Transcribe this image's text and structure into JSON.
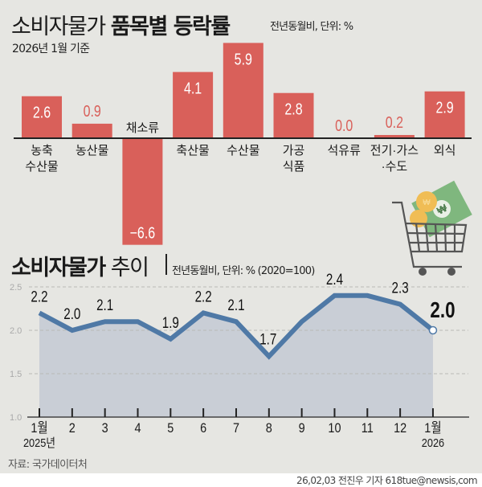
{
  "colors": {
    "background": "#e6e6e2",
    "bar": "#d9605a",
    "line": "#4f79a6",
    "area_fill": "#c9ced6",
    "gridline": "#b9b9b5"
  },
  "header": {
    "title_regular": "소비자물가 ",
    "title_bold": "품목별 등락률",
    "subtitle": "전년동월비, 단위: %",
    "basis": "2026년 1월 기준"
  },
  "section2": {
    "title_bold": "소비자물가",
    "title_regular": "추이",
    "subtitle": "전년동월비, 단위: % (2020=100)"
  },
  "illustration": {
    "icon": "shopping-cart-with-money-icon"
  },
  "footer": {
    "source": "자료: 국가데이터처",
    "credit": "26,02,03 전진우 기자 618tue@newsis,com"
  },
  "chart_data": [
    {
      "type": "bar",
      "title": "소비자물가 품목별 등락률",
      "subtitle": "전년동월비, 단위: %",
      "note": "2026년 1월 기준",
      "categories": [
        "농축수산물",
        "농산물",
        "채소류",
        "축산물",
        "수산물",
        "가공식품",
        "석유류",
        "전기·가스·수도",
        "외식"
      ],
      "category_lines": [
        [
          "농축",
          "수산물"
        ],
        [
          "농산물"
        ],
        [
          "채소류"
        ],
        [
          "축산물"
        ],
        [
          "수산물"
        ],
        [
          "가공",
          "식품"
        ],
        [
          "석유류"
        ],
        [
          "전기·가스",
          "·수도"
        ],
        [
          "외식"
        ]
      ],
      "values": [
        2.6,
        0.9,
        -6.6,
        4.1,
        5.9,
        2.8,
        0.0,
        0.2,
        2.9
      ],
      "value_labels": [
        "2.6",
        "0.9",
        "−6.6",
        "4.1",
        "5.9",
        "2.8",
        "0.0",
        "0.2",
        "2.9"
      ],
      "xlabel": "",
      "ylabel": "%",
      "grid": false
    },
    {
      "type": "area",
      "title": "소비자물가 추이",
      "subtitle": "전년동월비, 단위: % (2020=100)",
      "x": [
        "1월 2025년",
        "2",
        "3",
        "4",
        "5",
        "6",
        "7",
        "8",
        "9",
        "10",
        "11",
        "12",
        "1월 2026"
      ],
      "x_tick_lines": [
        [
          "1월",
          "2025년"
        ],
        [
          "2"
        ],
        [
          "3"
        ],
        [
          "4"
        ],
        [
          "5"
        ],
        [
          "6"
        ],
        [
          "7"
        ],
        [
          "8"
        ],
        [
          "9"
        ],
        [
          "10"
        ],
        [
          "11"
        ],
        [
          "12"
        ],
        [
          "1월",
          "2026"
        ]
      ],
      "values": [
        2.2,
        2.0,
        2.1,
        2.1,
        1.9,
        2.2,
        2.1,
        1.7,
        2.1,
        2.4,
        2.4,
        2.3,
        2.0
      ],
      "value_labels": [
        "2.2",
        "2.0",
        "2.1",
        "",
        "1.9",
        "2.2",
        "2.1",
        "1.7",
        "",
        "2.4",
        "",
        "2.3",
        "2.0"
      ],
      "yticks": [
        "2.5",
        "2.0",
        "1.5",
        "1.0"
      ],
      "ylim": [
        1.0,
        2.5
      ],
      "grid": true,
      "highlight_last": true
    }
  ]
}
